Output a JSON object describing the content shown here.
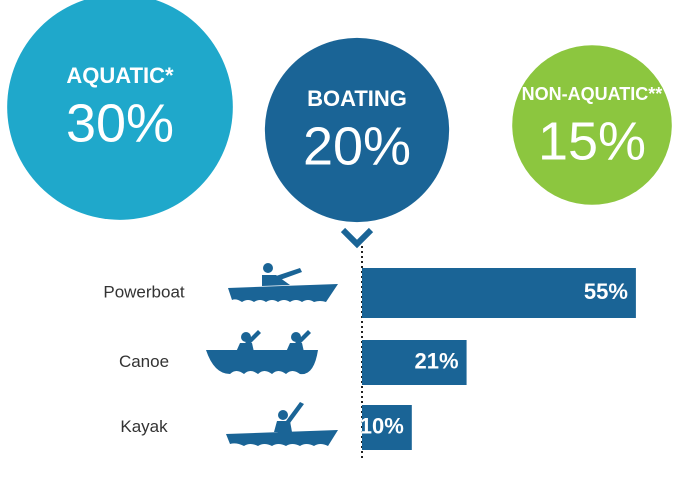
{
  "circles": [
    {
      "label": "AQUATIC*",
      "value": 30,
      "value_label": "30%",
      "color": "#1fa8cb"
    },
    {
      "label": "BOATING",
      "value": 20,
      "value_label": "20%",
      "color": "#1a6496"
    },
    {
      "label": "NON-AQUATIC**",
      "value": 15,
      "value_label": "15%",
      "color": "#8cc63f"
    }
  ],
  "chart_data": {
    "type": "bar",
    "orientation": "horizontal",
    "categories": [
      "Powerboat",
      "Canoe",
      "Kayak"
    ],
    "values": [
      55,
      21,
      10
    ],
    "value_labels": [
      "55%",
      "21%",
      "10%"
    ],
    "color": "#1a6496"
  }
}
